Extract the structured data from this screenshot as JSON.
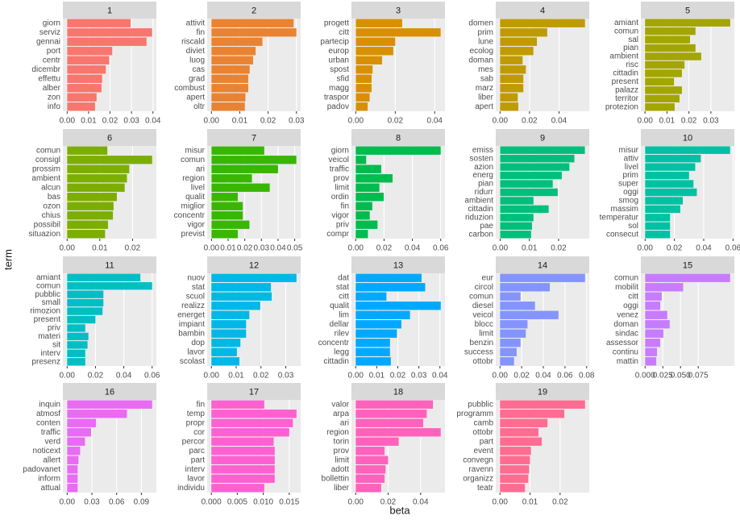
{
  "chart_data": {
    "type": "bar",
    "xlabel": "beta",
    "ylabel": "term",
    "panels": [
      {
        "title": "1",
        "color": "#F8766D",
        "categories": [
          "giorn",
          "serviz",
          "gennai",
          "port",
          "centr",
          "dicembr",
          "effettu",
          "alber",
          "zon",
          "info"
        ],
        "values": [
          0.0296,
          0.0396,
          0.037,
          0.021,
          0.0196,
          0.018,
          0.0163,
          0.016,
          0.0137,
          0.013
        ],
        "xlim": [
          -0.002,
          0.0416
        ],
        "xticks": [
          {
            "value": 0,
            "label": "0.00"
          },
          {
            "value": 0.01,
            "label": "0.01"
          },
          {
            "value": 0.02,
            "label": "0.02"
          },
          {
            "value": 0.03,
            "label": "0.03"
          },
          {
            "value": 0.04,
            "label": "0.04"
          }
        ]
      },
      {
        "title": "2",
        "color": "#EA8331",
        "categories": [
          "attivit",
          "fin",
          "riscald",
          "diviet",
          "luog",
          "cas",
          "grad",
          "combust",
          "apert",
          "oltr"
        ],
        "values": [
          0.029,
          0.03,
          0.018,
          0.0156,
          0.0147,
          0.0135,
          0.013,
          0.013,
          0.012,
          0.0118
        ],
        "xlim": [
          -0.0015,
          0.0315
        ],
        "xticks": [
          {
            "value": 0,
            "label": "0.00"
          },
          {
            "value": 0.01,
            "label": "0.01"
          },
          {
            "value": 0.02,
            "label": "0.02"
          },
          {
            "value": 0.03,
            "label": "0.03"
          }
        ]
      },
      {
        "title": "3",
        "color": "#D89000",
        "categories": [
          "progett",
          "citt",
          "partecip",
          "europ",
          "urban",
          "spost",
          "sfid",
          "magg",
          "traspor",
          "padov"
        ],
        "values": [
          0.0235,
          0.043,
          0.02,
          0.019,
          0.0133,
          0.0085,
          0.008,
          0.008,
          0.007,
          0.006
        ],
        "xlim": [
          -0.0022,
          0.0452
        ],
        "xticks": [
          {
            "value": 0,
            "label": "0.00"
          },
          {
            "value": 0.02,
            "label": "0.02"
          },
          {
            "value": 0.04,
            "label": "0.04"
          }
        ]
      },
      {
        "title": "4",
        "color": "#C09B00",
        "categories": [
          "domen",
          "prim",
          "lune",
          "ecolog",
          "doman",
          "mes",
          "sab",
          "marz",
          "liber",
          "apert"
        ],
        "values": [
          0.0576,
          0.032,
          0.025,
          0.0226,
          0.0153,
          0.0175,
          0.0158,
          0.0158,
          0.012,
          0.0124
        ],
        "xlim": [
          -0.0029,
          0.0605
        ],
        "xticks": [
          {
            "value": 0,
            "label": "0.00"
          },
          {
            "value": 0.02,
            "label": "0.02"
          },
          {
            "value": 0.04,
            "label": "0.04"
          }
        ]
      },
      {
        "title": "5",
        "color": "#A3A500",
        "categories": [
          "amiant",
          "comun",
          "sal",
          "pian",
          "ambient",
          "risc",
          "cittadin",
          "present",
          "palazz",
          "territor",
          "protezion"
        ],
        "values": [
          0.0388,
          0.023,
          0.0205,
          0.023,
          0.0256,
          0.018,
          0.0168,
          0.0132,
          0.0168,
          0.0157,
          0.0135
        ],
        "xlim": [
          -0.0019,
          0.0407
        ],
        "xticks": [
          {
            "value": 0,
            "label": "0.00"
          },
          {
            "value": 0.01,
            "label": "0.01"
          },
          {
            "value": 0.02,
            "label": "0.02"
          },
          {
            "value": 0.03,
            "label": "0.03"
          }
        ]
      },
      {
        "title": "6",
        "color": "#7CAE00",
        "categories": [
          "comun",
          "consigl",
          "prossim",
          "ambient",
          "alcun",
          "bas",
          "ozon",
          "chius",
          "possibil",
          "situazion"
        ],
        "values": [
          0.0123,
          0.026,
          0.019,
          0.0183,
          0.0176,
          0.0152,
          0.0142,
          0.014,
          0.0125,
          0.0116
        ],
        "xlim": [
          -0.0013,
          0.0273
        ],
        "xticks": [
          {
            "value": 0,
            "label": "0.00"
          },
          {
            "value": 0.01,
            "label": "0.01"
          },
          {
            "value": 0.02,
            "label": "0.02"
          }
        ]
      },
      {
        "title": "7",
        "color": "#39B600",
        "categories": [
          "misur",
          "comun",
          "ari",
          "region",
          "livel",
          "qualit",
          "miglior",
          "concentr",
          "vigor",
          "previst"
        ],
        "values": [
          0.0317,
          0.051,
          0.04,
          0.0243,
          0.035,
          0.0158,
          0.0188,
          0.0188,
          0.0228,
          0.0158
        ],
        "xlim": [
          -0.0026,
          0.0536
        ],
        "xticks": [
          {
            "value": 0,
            "label": "0.00"
          },
          {
            "value": 0.01,
            "label": "0.01"
          },
          {
            "value": 0.02,
            "label": "0.02"
          },
          {
            "value": 0.03,
            "label": "0.03"
          },
          {
            "value": 0.04,
            "label": "0.04"
          },
          {
            "value": 0.05,
            "label": "0.05"
          }
        ]
      },
      {
        "title": "8",
        "color": "#00BB4E",
        "categories": [
          "giorn",
          "veicol",
          "traffic",
          "prov",
          "limit",
          "ordin",
          "fin",
          "vigor",
          "priv",
          "compr"
        ],
        "values": [
          0.06,
          0.0074,
          0.018,
          0.026,
          0.0167,
          0.0198,
          0.0117,
          0.0099,
          0.0154,
          0.0086
        ],
        "xlim": [
          -0.003,
          0.063
        ],
        "xticks": [
          {
            "value": 0,
            "label": "0.00"
          },
          {
            "value": 0.02,
            "label": "0.02"
          },
          {
            "value": 0.04,
            "label": "0.04"
          },
          {
            "value": 0.06,
            "label": "0.06"
          }
        ]
      },
      {
        "title": "9",
        "color": "#00BF7D",
        "categories": [
          "emiss",
          "sosten",
          "azion",
          "energ",
          "pian",
          "ridurr",
          "ambient",
          "cittadin",
          "riduzion",
          "pae",
          "carbon"
        ],
        "values": [
          0.029,
          0.0254,
          0.0237,
          0.0211,
          0.018,
          0.0197,
          0.0114,
          0.0166,
          0.0114,
          0.0109,
          0.0106
        ],
        "xlim": [
          -0.0015,
          0.0305
        ],
        "xticks": [
          {
            "value": 0,
            "label": "0.00"
          },
          {
            "value": 0.01,
            "label": "0.01"
          },
          {
            "value": 0.02,
            "label": "0.02"
          }
        ]
      },
      {
        "title": "10",
        "color": "#00C1A3",
        "categories": [
          "misur",
          "attiv",
          "livel",
          "prim",
          "super",
          "oggi",
          "smog",
          "massim",
          "temperatur",
          "sol",
          "consecut"
        ],
        "values": [
          0.058,
          0.038,
          0.0342,
          0.03,
          0.033,
          0.0353,
          0.0257,
          0.024,
          0.017,
          0.017,
          0.017
        ],
        "xlim": [
          -0.0029,
          0.0609
        ],
        "xticks": [
          {
            "value": 0,
            "label": "0.00"
          },
          {
            "value": 0.02,
            "label": "0.02"
          },
          {
            "value": 0.04,
            "label": "0.04"
          },
          {
            "value": 0.06,
            "label": "0.06"
          }
        ]
      },
      {
        "title": "11",
        "color": "#00BFC4",
        "categories": [
          "amiant",
          "comun",
          "pubblic",
          "small",
          "rimozion",
          "present",
          "priv",
          "materi",
          "sit",
          "interv",
          "presenz"
        ],
        "values": [
          0.0517,
          0.06,
          0.0256,
          0.0256,
          0.025,
          0.02,
          0.0128,
          0.015,
          0.0144,
          0.0128,
          0.0128
        ],
        "xlim": [
          -0.003,
          0.063
        ],
        "xticks": [
          {
            "value": 0,
            "label": "0.00"
          },
          {
            "value": 0.02,
            "label": "0.02"
          },
          {
            "value": 0.04,
            "label": "0.04"
          },
          {
            "value": 0.06,
            "label": "0.06"
          }
        ]
      },
      {
        "title": "12",
        "color": "#00B8E7",
        "categories": [
          "nuov",
          "stat",
          "scuol",
          "realizz",
          "energet",
          "impiant",
          "bambin",
          "dop",
          "lavor",
          "scolast"
        ],
        "values": [
          0.0343,
          0.024,
          0.0243,
          0.0197,
          0.0153,
          0.014,
          0.014,
          0.0117,
          0.0103,
          0.0113
        ],
        "xlim": [
          -0.0017,
          0.036
        ],
        "xticks": [
          {
            "value": 0,
            "label": "0.00"
          },
          {
            "value": 0.01,
            "label": "0.01"
          },
          {
            "value": 0.02,
            "label": "0.02"
          },
          {
            "value": 0.03,
            "label": "0.03"
          }
        ]
      },
      {
        "title": "13",
        "color": "#00A9FF",
        "categories": [
          "dat",
          "stat",
          "citt",
          "qualit",
          "lim",
          "dellar",
          "rilev",
          "concentr",
          "legg",
          "cittadin"
        ],
        "values": [
          0.0313,
          0.033,
          0.0146,
          0.0404,
          0.0258,
          0.0217,
          0.0196,
          0.0163,
          0.0163,
          0.0167
        ],
        "xlim": [
          -0.002,
          0.0424
        ],
        "xticks": [
          {
            "value": 0,
            "label": "0.00"
          },
          {
            "value": 0.01,
            "label": "0.01"
          },
          {
            "value": 0.02,
            "label": "0.02"
          },
          {
            "value": 0.03,
            "label": "0.03"
          },
          {
            "value": 0.04,
            "label": "0.04"
          }
        ]
      },
      {
        "title": "14",
        "color": "#8494FF",
        "categories": [
          "eur",
          "circol",
          "comun",
          "diesel",
          "veicol",
          "blocc",
          "limit",
          "benzin",
          "success",
          "ottobr"
        ],
        "values": [
          0.0785,
          0.046,
          0.019,
          0.0323,
          0.054,
          0.0254,
          0.0238,
          0.019,
          0.0154,
          0.013
        ],
        "xlim": [
          -0.0039,
          0.0824
        ],
        "xticks": [
          {
            "value": 0,
            "label": "0.00"
          },
          {
            "value": 0.02,
            "label": "0.02"
          },
          {
            "value": 0.04,
            "label": "0.04"
          },
          {
            "value": 0.06,
            "label": "0.06"
          },
          {
            "value": 0.08,
            "label": "0.08"
          }
        ]
      },
      {
        "title": "15",
        "color": "#C77CFF",
        "categories": [
          "comun",
          "mobilit",
          "citt",
          "oggi",
          "venez",
          "doman",
          "sindac",
          "assessor",
          "continu",
          "mattin"
        ],
        "values": [
          0.12,
          0.0537,
          0.0235,
          0.0213,
          0.0313,
          0.0347,
          0.0258,
          0.0213,
          0.0168,
          0.0157
        ],
        "xlim": [
          -0.006,
          0.126
        ],
        "xticks": [
          {
            "value": 0,
            "label": "0.000"
          },
          {
            "value": 0.025,
            "label": "0.025"
          },
          {
            "value": 0.05,
            "label": "0.050"
          },
          {
            "value": 0.075,
            "label": "0.075"
          }
        ]
      },
      {
        "title": "16",
        "color": "#E76BF3",
        "categories": [
          "inquin",
          "atmosf",
          "conten",
          "traffic",
          "verd",
          "noticext",
          "allert",
          "padovanet",
          "inform",
          "attual"
        ],
        "values": [
          0.103,
          0.0725,
          0.035,
          0.029,
          0.0216,
          0.0157,
          0.0137,
          0.0127,
          0.0127,
          0.0127
        ],
        "xlim": [
          -0.0052,
          0.1082
        ],
        "xticks": [
          {
            "value": 0,
            "label": "0.00"
          },
          {
            "value": 0.03,
            "label": "0.03"
          },
          {
            "value": 0.06,
            "label": "0.06"
          },
          {
            "value": 0.09,
            "label": "0.09"
          }
        ]
      },
      {
        "title": "17",
        "color": "#FD61D1",
        "categories": [
          "fin",
          "temp",
          "propr",
          "cor",
          "percor",
          "parc",
          "part",
          "interv",
          "lavor",
          "individu"
        ],
        "values": [
          0.0102,
          0.0164,
          0.0157,
          0.015,
          0.012,
          0.0122,
          0.0122,
          0.0122,
          0.0122,
          0.0102
        ],
        "xlim": [
          -0.0008,
          0.0172
        ],
        "xticks": [
          {
            "value": 0,
            "label": "0.000"
          },
          {
            "value": 0.005,
            "label": "0.005"
          },
          {
            "value": 0.01,
            "label": "0.010"
          },
          {
            "value": 0.015,
            "label": "0.015"
          }
        ]
      },
      {
        "title": "18",
        "color": "#FF62BC",
        "categories": [
          "valor",
          "arpa",
          "ari",
          "region",
          "torin",
          "prov",
          "limit",
          "adott",
          "bollettin",
          "liber"
        ],
        "values": [
          0.0476,
          0.0438,
          0.0416,
          0.0524,
          0.0265,
          0.0178,
          0.02,
          0.0184,
          0.0178,
          0.0157
        ],
        "xlim": [
          -0.0026,
          0.055
        ],
        "xticks": [
          {
            "value": 0,
            "label": "0.00"
          },
          {
            "value": 0.02,
            "label": "0.02"
          },
          {
            "value": 0.04,
            "label": "0.04"
          }
        ]
      },
      {
        "title": "19",
        "color": "#FF6C91",
        "categories": [
          "pubblic",
          "programm",
          "camb",
          "ottobr",
          "part",
          "event",
          "convegn",
          "ravenn",
          "organizz",
          "teatr"
        ],
        "values": [
          0.0283,
          0.0214,
          0.0158,
          0.0128,
          0.0139,
          0.0103,
          0.01,
          0.0097,
          0.0094,
          0.0083
        ],
        "xlim": [
          -0.0014,
          0.0297
        ],
        "xticks": [
          {
            "value": 0,
            "label": "0.00"
          },
          {
            "value": 0.01,
            "label": "0.01"
          },
          {
            "value": 0.02,
            "label": "0.02"
          }
        ]
      }
    ]
  }
}
